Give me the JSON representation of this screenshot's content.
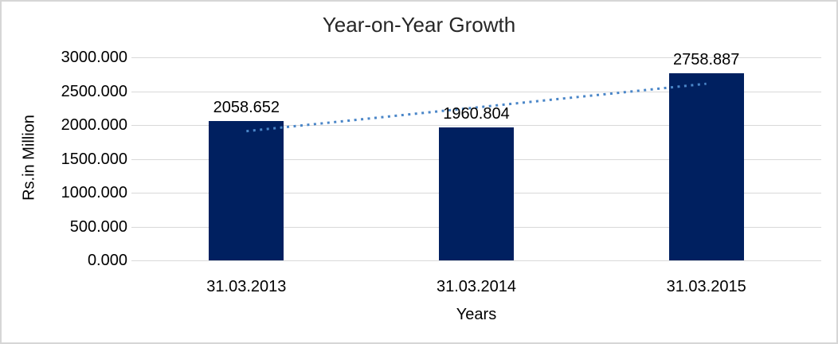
{
  "window": {
    "background": "#ffffff",
    "border_color": "#d6d6d6"
  },
  "chart_data": {
    "type": "bar",
    "title": "Year-on-Year Growth",
    "xlabel": "Years",
    "ylabel": "Rs.in Million",
    "categories": [
      "31.03.2013",
      "31.03.2014",
      "31.03.2015"
    ],
    "values": [
      2058.652,
      1960.804,
      2758.887
    ],
    "data_labels": [
      "2058.652",
      "1960.804",
      "2758.887"
    ],
    "ylim": [
      0,
      3000
    ],
    "y_ticks": [
      {
        "value": 0,
        "label": "0.000"
      },
      {
        "value": 500,
        "label": "500.000"
      },
      {
        "value": 1000,
        "label": "1000.000"
      },
      {
        "value": 1500,
        "label": "1500.000"
      },
      {
        "value": 2000,
        "label": "2000.000"
      },
      {
        "value": 2500,
        "label": "2500.000"
      },
      {
        "value": 3000,
        "label": "3000.000"
      }
    ],
    "grid": true,
    "legend": "none",
    "bar_color": "#002060",
    "gridline_color": "#d9d9d9",
    "trendline": {
      "type": "linear",
      "style": "dotted",
      "color": "#4a86c8"
    }
  }
}
